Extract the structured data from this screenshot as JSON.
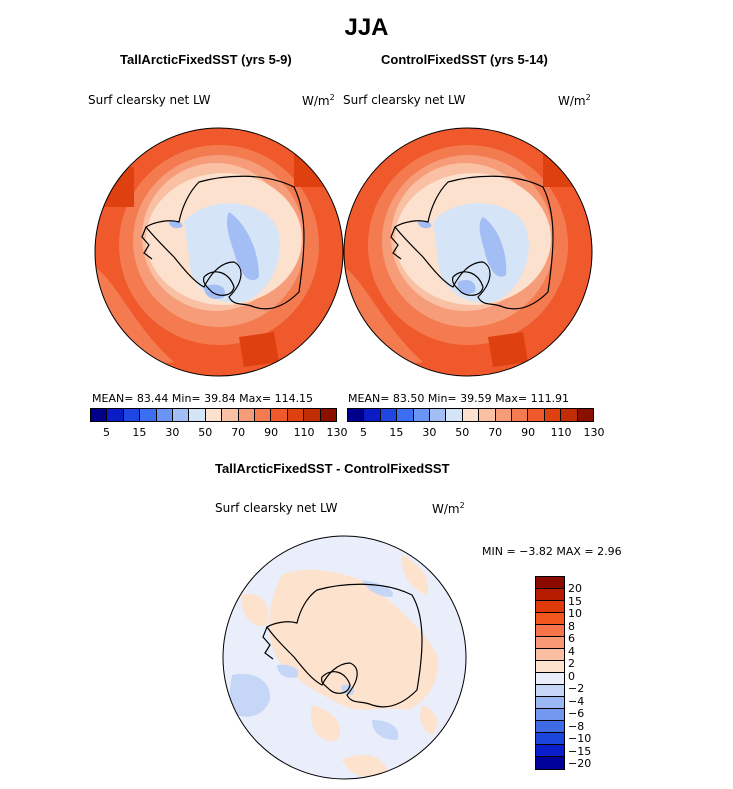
{
  "title": "JJA",
  "panels": [
    {
      "title": "TallArcticFixedSST (yrs 5-9)",
      "variable": "Surf clearsky net LW",
      "units": "W/m",
      "units_sup": "2",
      "stats": "MEAN=  83.44   Min=  39.84   Max= 114.15"
    },
    {
      "title": "ControlFixedSST (yrs 5-14)",
      "variable": "Surf clearsky net LW",
      "units": "W/m",
      "units_sup": "2",
      "stats": "MEAN=  83.50   Min=  39.59   Max= 111.91"
    }
  ],
  "colorbar": {
    "colors": [
      "#00008b",
      "#0a1cc6",
      "#1f46e0",
      "#3b6ef0",
      "#6a95f4",
      "#a3bdf5",
      "#d6e4f7",
      "#fce1cf",
      "#f9c0a3",
      "#f79c78",
      "#f47a4f",
      "#f0592c",
      "#de4010",
      "#c22c02",
      "#8a1000"
    ],
    "ticks": [
      "5",
      "15",
      "30",
      "50",
      "70",
      "90",
      "110",
      "130"
    ]
  },
  "diff": {
    "title": "TallArcticFixedSST - ControlFixedSST",
    "variable": "Surf clearsky net LW",
    "units": "W/m",
    "units_sup": "2",
    "stats": "MIN =   −3.82  MAX =    2.96",
    "colorbar": {
      "colors": [
        "#8b0a00",
        "#b81c00",
        "#de3a0a",
        "#f4571e",
        "#f6744a",
        "#f89874",
        "#fabfa2",
        "#fde2cd",
        "#e9eefa",
        "#c5d6f6",
        "#9bb8f2",
        "#7197ee",
        "#3f6ae6",
        "#1c45dc",
        "#0a1fcb",
        "#00009a"
      ],
      "ticks": [
        "20",
        "15",
        "10",
        "8",
        "6",
        "4",
        "2",
        "0",
        "−2",
        "−4",
        "−6",
        "−8",
        "−10",
        "−15",
        "−20"
      ]
    }
  }
}
